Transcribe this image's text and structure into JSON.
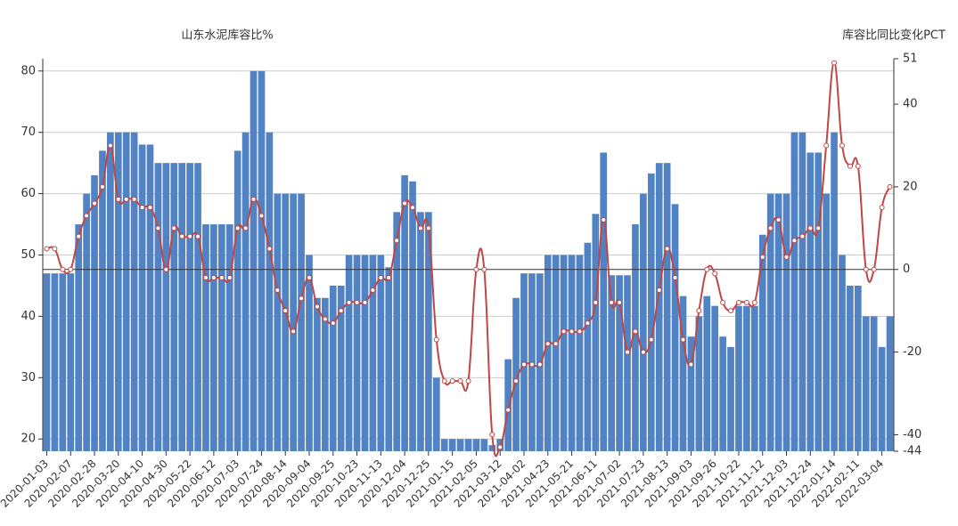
{
  "chart_data": {
    "type": "bar-line",
    "title_left": "山东水泥库容比%",
    "title_right": "库容比同比变化PCT",
    "categories": [
      "2020-01-03",
      null,
      null,
      "2020-02-07",
      null,
      null,
      "2020-02-28",
      null,
      null,
      "2020-03-20",
      null,
      null,
      "2020-04-10",
      null,
      null,
      "2020-04-30",
      null,
      null,
      "2020-05-22",
      null,
      null,
      "2020-06-12",
      null,
      null,
      "2020-07-03",
      null,
      null,
      "2020-07-24",
      null,
      null,
      "2020-08-14",
      null,
      null,
      "2020-09-04",
      null,
      null,
      "2020-09-25",
      null,
      null,
      "2020-10-23",
      null,
      null,
      "2020-11-13",
      null,
      null,
      "2020-12-04",
      null,
      null,
      "2020-12-25",
      null,
      null,
      "2021-01-15",
      null,
      null,
      "2021-02-05",
      null,
      null,
      "2021-03-12",
      null,
      null,
      "2021-04-02",
      null,
      null,
      "2021-04-23",
      null,
      null,
      "2021-05-21",
      null,
      null,
      "2021-06-11",
      null,
      null,
      "2021-07-02",
      null,
      null,
      "2021-07-23",
      null,
      null,
      "2021-08-13",
      null,
      null,
      "2021-09-03",
      null,
      null,
      "2021-09-26",
      null,
      null,
      "2021-10-22",
      null,
      null,
      "2021-11-12",
      null,
      null,
      "2021-12-03",
      null,
      null,
      "2021-12-24",
      null,
      null,
      "2022-01-14",
      null,
      null,
      "2022-02-11",
      null,
      null,
      "2022-03-04",
      null
    ],
    "series": [
      {
        "name": "山东水泥库容比%",
        "kind": "bar",
        "axis": "y",
        "color": "#5182c4",
        "values": [
          47,
          47,
          47,
          47,
          55,
          60,
          63,
          67,
          70,
          70,
          70,
          70,
          68,
          68,
          65,
          65,
          65,
          65,
          65,
          65,
          55,
          55,
          55,
          55,
          67,
          70,
          80,
          80,
          70,
          60,
          60,
          60,
          60,
          50,
          43,
          43,
          45,
          45,
          50,
          50,
          50,
          50,
          50,
          48,
          57,
          63,
          62,
          57,
          57,
          30,
          20,
          20,
          20,
          20,
          20,
          20,
          19,
          20,
          33,
          43,
          47,
          47,
          47,
          50,
          50,
          50,
          50,
          50,
          52,
          56.7,
          66.7,
          46.7,
          46.7,
          46.7,
          55,
          60,
          63.3,
          65,
          65,
          58.3,
          43.3,
          36.7,
          40,
          43.3,
          41.7,
          36.7,
          35,
          41.7,
          41.7,
          41.7,
          53.3,
          60,
          60,
          60,
          70,
          70,
          66.7,
          66.7,
          60,
          70,
          50,
          45,
          45,
          40,
          40,
          35,
          40
        ]
      },
      {
        "name": "库容比同比变化PCT",
        "kind": "line",
        "axis": "y2",
        "color": "#bf4744",
        "values": [
          5,
          5,
          0,
          0,
          8,
          13,
          16,
          20,
          30,
          17,
          17,
          17,
          15,
          15,
          10,
          0,
          10,
          8,
          8,
          8,
          -2,
          -2,
          -2,
          -2,
          10,
          10,
          17,
          13,
          5,
          -5,
          -10,
          -15,
          -7,
          -2,
          -9,
          -12,
          -13,
          -10,
          -8,
          -8,
          -8,
          -5,
          -2,
          -2,
          7,
          16,
          15,
          10,
          10,
          -17,
          -27,
          -27,
          -27,
          -27,
          0,
          0,
          -40,
          -43,
          -34,
          -27,
          -23,
          -23,
          -23,
          -18,
          -18,
          -15,
          -15,
          -15,
          -13,
          -8,
          12,
          -8,
          -8,
          -20,
          -15,
          -20,
          -17,
          -5,
          5,
          -2,
          -17,
          -23,
          -10,
          0,
          -1,
          -8,
          -10,
          -8,
          -8,
          -8,
          3,
          10,
          12,
          3,
          7,
          8,
          10,
          10,
          30,
          50,
          30,
          25,
          25,
          0,
          0,
          15,
          20
        ]
      }
    ],
    "ylim": [
      18,
      82
    ],
    "yticks": [
      20,
      30,
      40,
      50,
      60,
      70,
      80
    ],
    "y2lim": [
      -44,
      51
    ],
    "y2ticks": [
      -44,
      -40,
      -20,
      0,
      20,
      40,
      51
    ],
    "grid": true
  }
}
